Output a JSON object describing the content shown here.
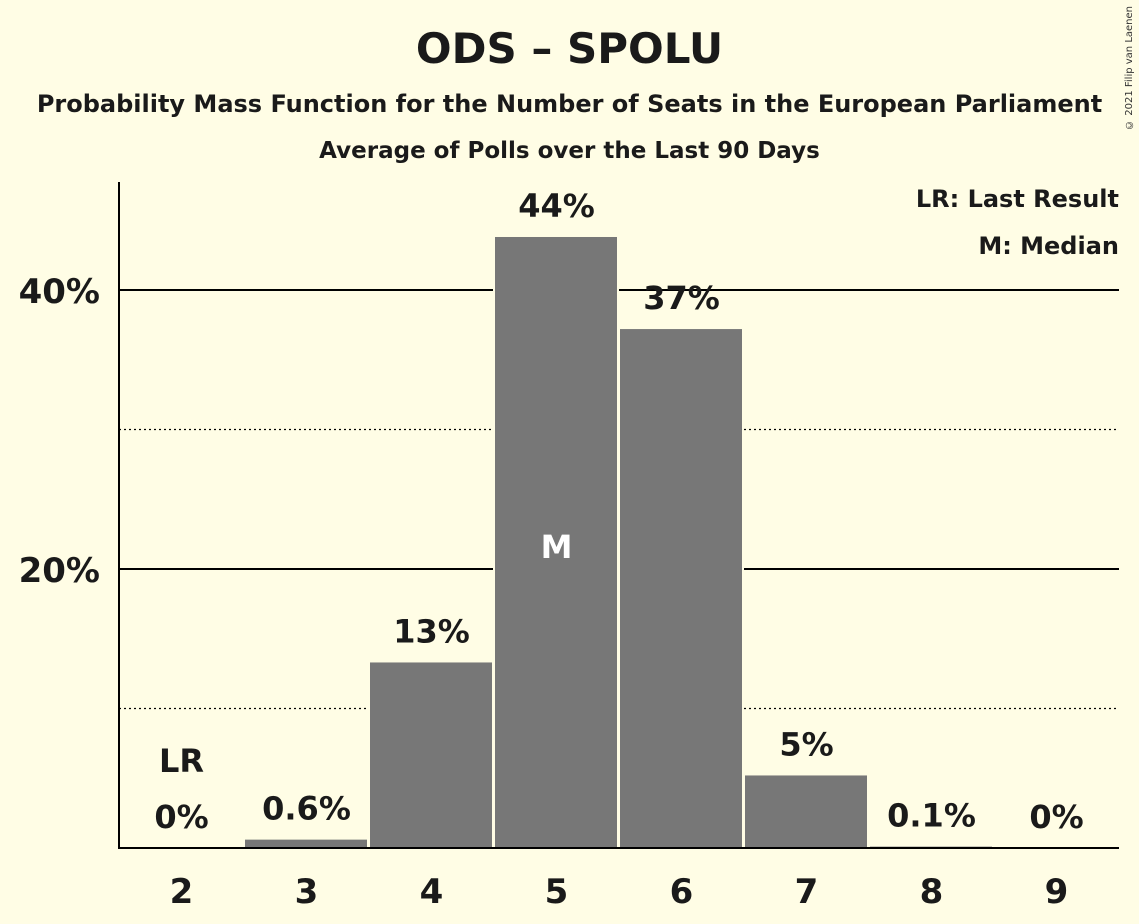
{
  "title": "ODS – SPOLU",
  "subtitle": "Probability Mass Function for the Number of Seats in the European Parliament",
  "subtitle2": "Average of Polls over the Last 90 Days",
  "copyright": "© 2021 Filip van Laenen",
  "legend": {
    "lr": "LR: Last Result",
    "m": "M: Median"
  },
  "colors": {
    "background": "#FFFDE5",
    "bar": "#777777",
    "axis": "#000000"
  },
  "chart_data": {
    "type": "bar",
    "categories": [
      "2",
      "3",
      "4",
      "5",
      "6",
      "7",
      "8",
      "9"
    ],
    "values": [
      0,
      0.6,
      13.3,
      43.8,
      37.2,
      5.2,
      0.1,
      0
    ],
    "value_labels": [
      "0%",
      "0.6%",
      "13%",
      "44%",
      "37%",
      "5%",
      "0.1%",
      "0%"
    ],
    "ylim": [
      0,
      47
    ],
    "yticks": [
      20,
      40
    ],
    "ytick_labels": [
      "20%",
      "40%"
    ],
    "minor_gridlines": [
      10,
      30
    ],
    "median_category": "5",
    "median_label": "M",
    "last_result_category": "2",
    "last_result_label": "LR",
    "legend_position": "top-right"
  }
}
